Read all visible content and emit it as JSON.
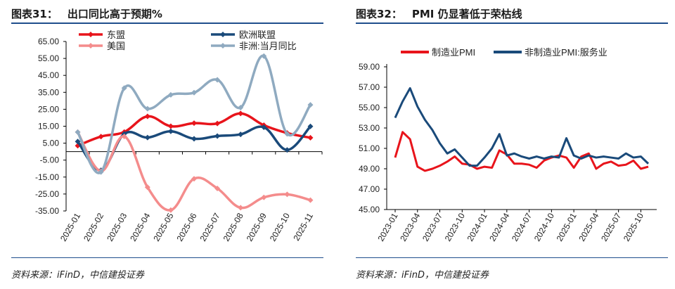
{
  "left": {
    "fig_num": "图表31：",
    "fig_title": "出口同比高于预期%",
    "source": "资料来源：iFinD，中信建投证券",
    "legend": [
      "东盟",
      "欧洲联盟",
      "美国",
      "非洲:当月同比"
    ],
    "chart_data": {
      "type": "line",
      "categories": [
        "2025-01",
        "2025-02",
        "2025-03",
        "2025-04",
        "2025-05",
        "2025-06",
        "2025-07",
        "2025-08",
        "2025-09",
        "2025-10",
        "2025-11"
      ],
      "ylim": [
        -35,
        65
      ],
      "yticks": [
        -35,
        -25,
        -15,
        -5,
        5,
        15,
        25,
        35,
        45,
        55,
        65
      ],
      "ytick_labels": [
        "-35.00",
        "-25.00",
        "-15.00",
        "-5.00",
        "5.00",
        "15.00",
        "25.00",
        "35.00",
        "45.00",
        "55.00",
        "65.00"
      ],
      "grid": false,
      "legend_position": "top",
      "series": [
        {
          "name": "东盟",
          "color": "#e8141b",
          "marker": "diamond",
          "values": [
            3.5,
            8.9,
            11.6,
            20.8,
            15.0,
            16.8,
            16.6,
            22.5,
            15.6,
            11.0,
            8.2
          ]
        },
        {
          "name": "欧洲联盟",
          "color": "#1a4a7a",
          "marker": "diamond",
          "values": [
            6.0,
            -11.0,
            10.5,
            8.3,
            12.0,
            7.6,
            9.2,
            10.2,
            14.4,
            1.0,
            14.9
          ]
        },
        {
          "name": "美国",
          "color": "#f48c8c",
          "marker": "diamond",
          "values": [
            11.5,
            -11.5,
            9.0,
            -21.0,
            -34.5,
            -16.0,
            -21.7,
            -33.1,
            -27.0,
            -25.2,
            -28.6
          ]
        },
        {
          "name": "非洲:当月同比",
          "color": "#8faac0",
          "marker": "diamond",
          "values": [
            11.5,
            -12.0,
            37.5,
            25.3,
            33.5,
            34.8,
            42.4,
            26.0,
            56.4,
            10.5,
            27.6
          ]
        }
      ]
    }
  },
  "right": {
    "fig_num": "图表32：",
    "fig_title": "PMI 仍显著低于荣枯线",
    "source": "资料来源：iFinD，中信建投证券",
    "legend": [
      "制造业PMI",
      "非制造业PMI:服务业"
    ],
    "chart_data": {
      "type": "line",
      "x": [
        "2023-01",
        "2023-02",
        "2023-03",
        "2023-04",
        "2023-05",
        "2023-06",
        "2023-07",
        "2023-08",
        "2023-09",
        "2023-10",
        "2023-11",
        "2023-12",
        "2024-01",
        "2024-02",
        "2024-03",
        "2024-04",
        "2024-05",
        "2024-06",
        "2024-07",
        "2024-08",
        "2024-09",
        "2024-10",
        "2024-11",
        "2024-12",
        "2025-01",
        "2025-02",
        "2025-03",
        "2025-04",
        "2025-05",
        "2025-06",
        "2025-07",
        "2025-08",
        "2025-09",
        "2025-10",
        "2025-11"
      ],
      "xtick_labels": [
        "2023-01",
        "2023-04",
        "2023-07",
        "2023-10",
        "2024-01",
        "2024-04",
        "2024-07",
        "2024-10",
        "2025-01",
        "2025-04",
        "2025-07",
        "2025-10"
      ],
      "ylim": [
        45,
        59
      ],
      "yticks": [
        45,
        47,
        49,
        51,
        53,
        55,
        57,
        59
      ],
      "ytick_labels": [
        "45.00",
        "47.00",
        "49.00",
        "51.00",
        "53.00",
        "55.00",
        "57.00",
        "59.00"
      ],
      "grid": false,
      "legend_position": "top",
      "series": [
        {
          "name": "制造业PMI",
          "color": "#e8141b",
          "values": [
            50.1,
            52.6,
            51.9,
            49.2,
            48.8,
            49.0,
            49.3,
            49.7,
            50.2,
            49.5,
            49.4,
            49.0,
            49.2,
            49.1,
            50.8,
            50.4,
            49.5,
            49.5,
            49.4,
            49.1,
            49.8,
            50.1,
            50.3,
            50.1,
            49.1,
            50.2,
            50.5,
            49.0,
            49.5,
            49.7,
            49.3,
            49.4,
            49.8,
            49.0,
            49.2
          ]
        },
        {
          "name": "非制造业PMI:服务业",
          "color": "#1a4a7a",
          "values": [
            54.0,
            55.6,
            56.9,
            55.1,
            53.8,
            52.8,
            51.5,
            50.5,
            50.9,
            50.1,
            49.3,
            49.3,
            50.1,
            51.0,
            52.4,
            50.3,
            50.5,
            50.2,
            50.0,
            50.2,
            50.0,
            50.2,
            50.1,
            52.0,
            50.3,
            50.0,
            50.3,
            50.1,
            50.2,
            50.1,
            50.0,
            50.5,
            50.1,
            50.2,
            49.5
          ]
        }
      ]
    }
  }
}
